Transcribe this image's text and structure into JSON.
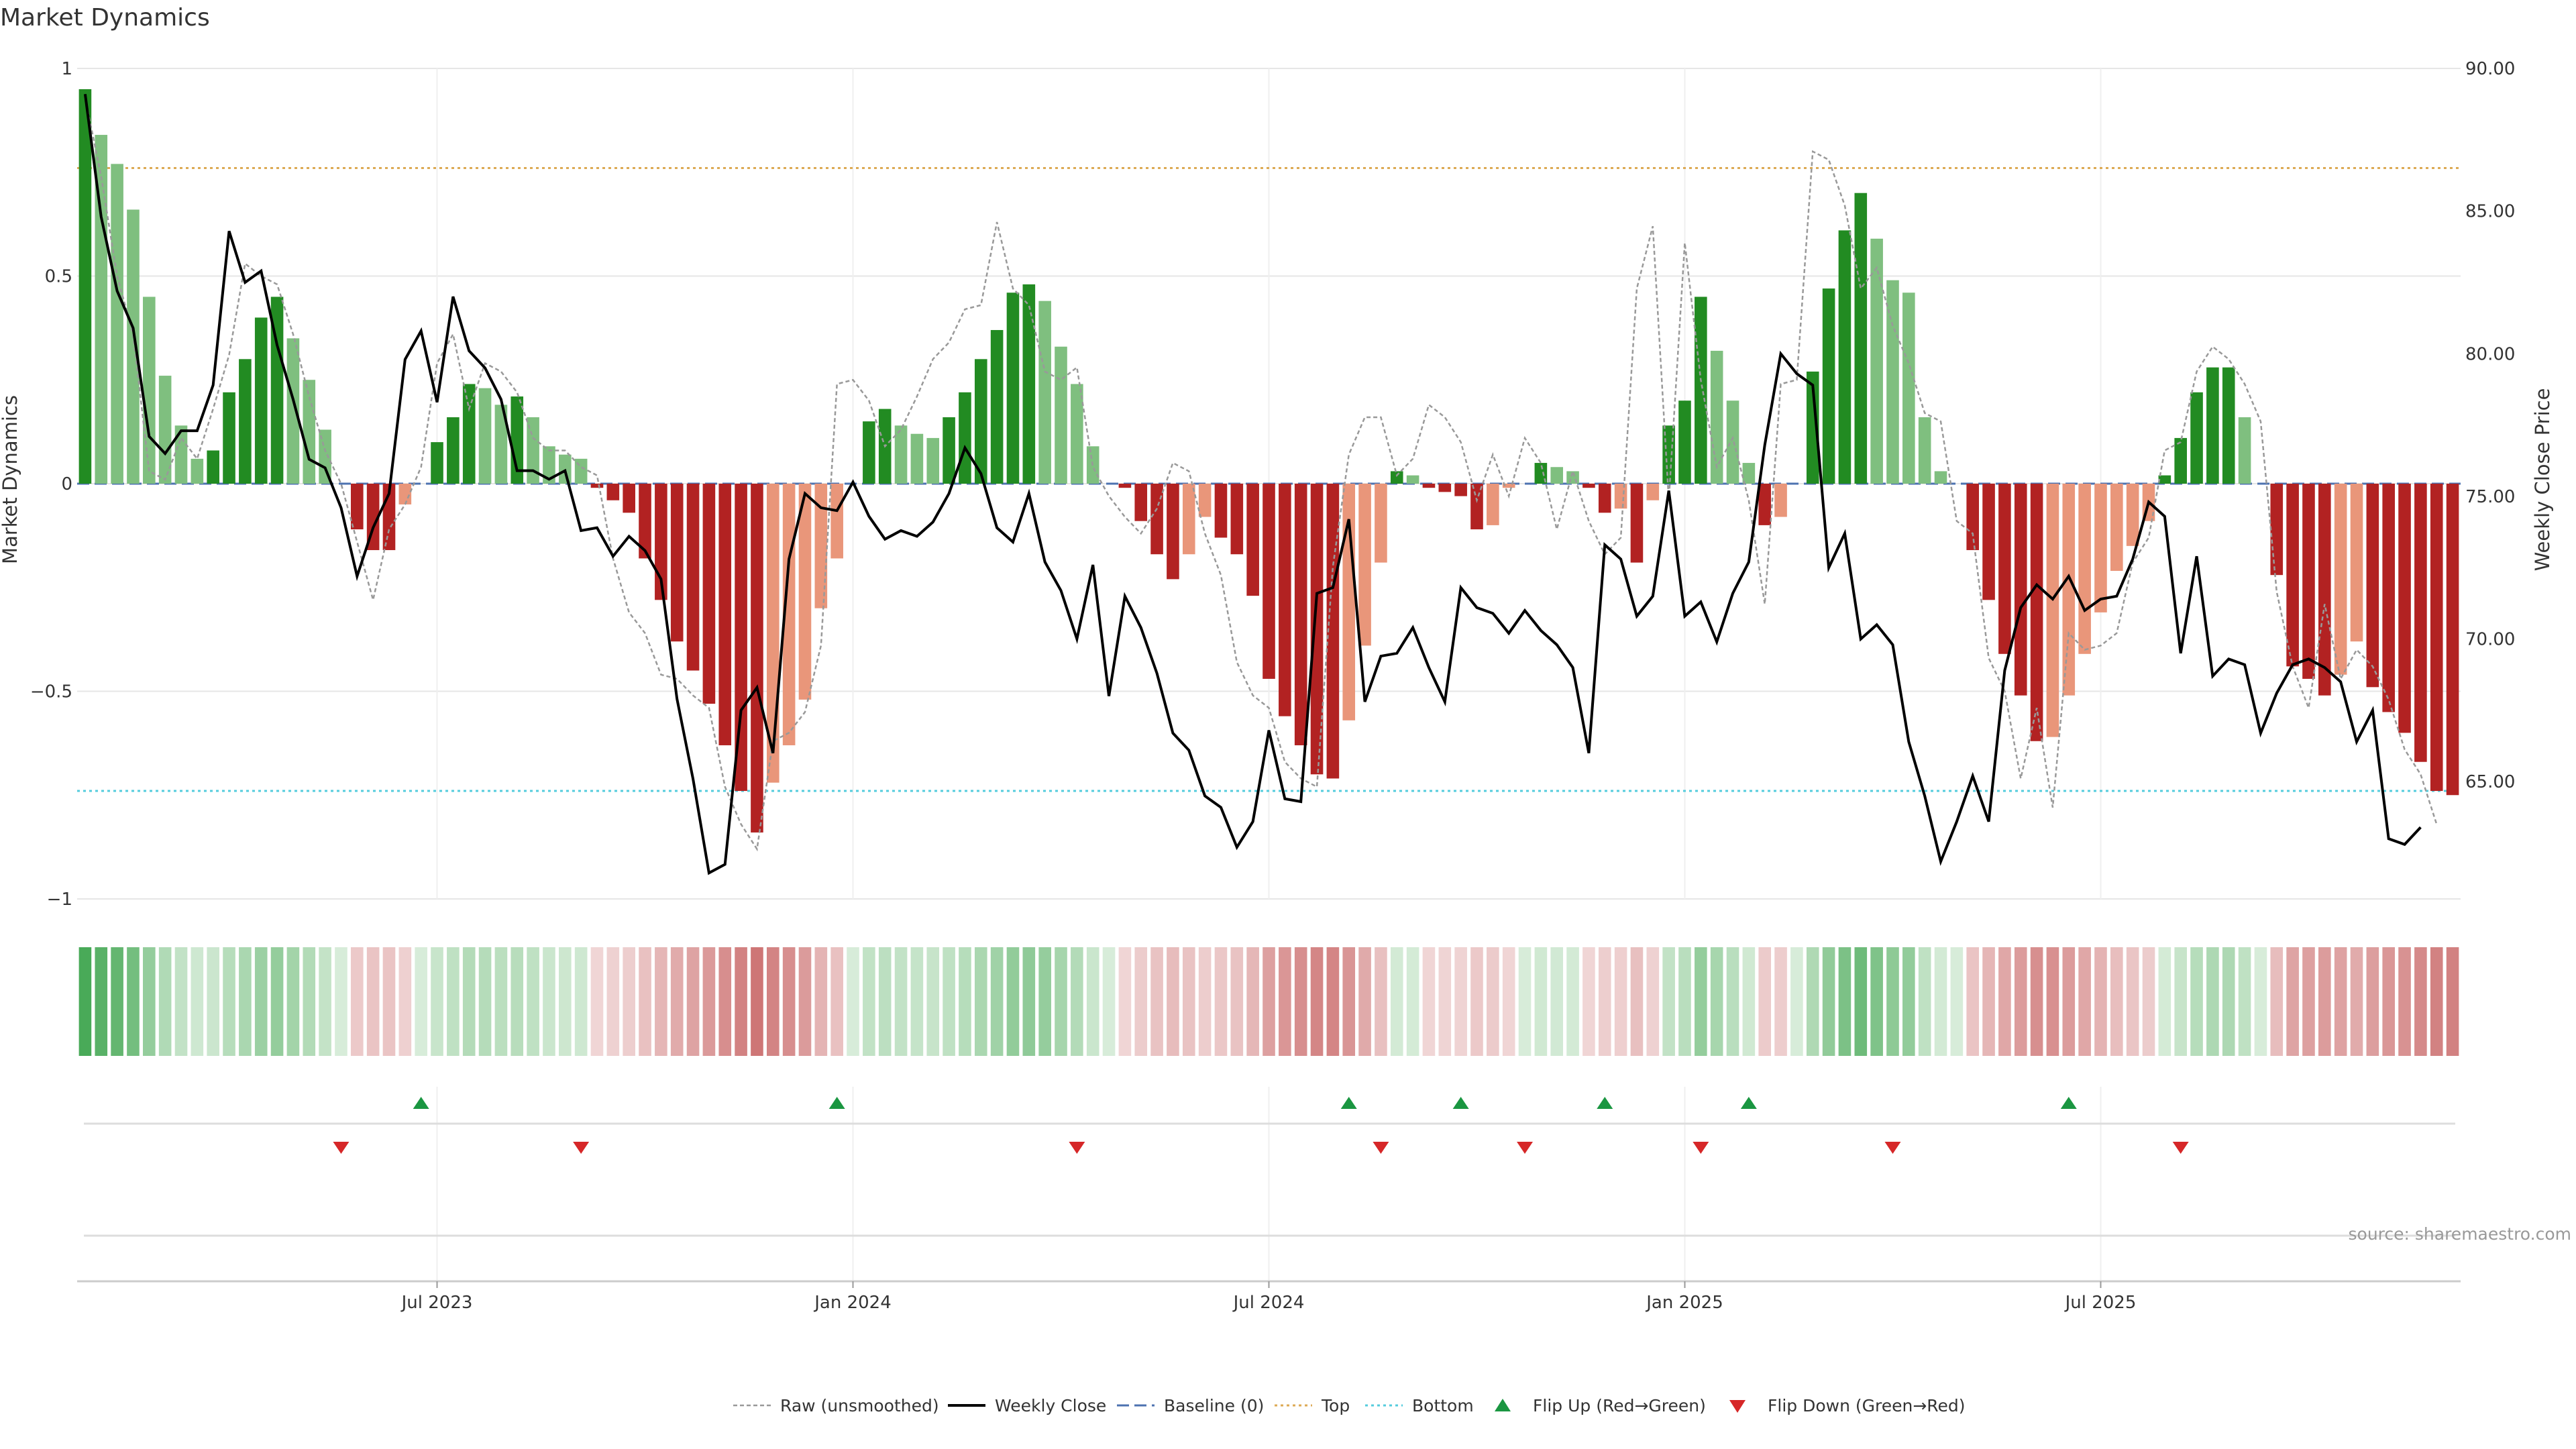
{
  "chart_data": {
    "type": "bar",
    "title": "Market Dynamics",
    "ylabel_left": "Market Dynamics",
    "ylabel_right": "Weekly Close Price",
    "ylim_left": [
      -1,
      1
    ],
    "ylim_right": [
      60.89,
      90.0
    ],
    "left_ticks": [
      "1",
      "0.5",
      "0",
      "−0.5",
      "−1"
    ],
    "left_tick_values": [
      1,
      0.5,
      0,
      -0.5,
      -1
    ],
    "right_ticks": [
      "90.00",
      "85.00",
      "80.00",
      "75.00",
      "70.00",
      "65.00"
    ],
    "right_tick_values": [
      90,
      85,
      80,
      75,
      70,
      65
    ],
    "x_ticks": [
      "Jul 2023",
      "Jan 2024",
      "Jul 2024",
      "Jan 2025",
      "Jul 2025"
    ],
    "x_tick_week_index": [
      22.5,
      48.5,
      74.5,
      100.5,
      126.5
    ],
    "top_level": 0.76,
    "bottom_level": -0.74,
    "baseline": 0,
    "bars": [
      0.95,
      0.84,
      0.77,
      0.66,
      0.45,
      0.26,
      0.14,
      0.06,
      0.08,
      0.22,
      0.3,
      0.4,
      0.45,
      0.35,
      0.25,
      0.13,
      0.0,
      -0.11,
      -0.16,
      -0.16,
      -0.05,
      0.0,
      0.1,
      0.16,
      0.24,
      0.23,
      0.19,
      0.21,
      0.16,
      0.09,
      0.07,
      0.06,
      -0.01,
      -0.04,
      -0.07,
      -0.18,
      -0.28,
      -0.38,
      -0.45,
      -0.53,
      -0.63,
      -0.74,
      -0.84,
      -0.72,
      -0.63,
      -0.52,
      -0.3,
      -0.18,
      0.0,
      0.15,
      0.18,
      0.14,
      0.12,
      0.11,
      0.16,
      0.22,
      0.3,
      0.37,
      0.46,
      0.48,
      0.44,
      0.33,
      0.24,
      0.09,
      0.0,
      -0.01,
      -0.09,
      -0.17,
      -0.23,
      -0.17,
      -0.08,
      -0.13,
      -0.17,
      -0.27,
      -0.47,
      -0.56,
      -0.63,
      -0.7,
      -0.71,
      -0.57,
      -0.39,
      -0.19,
      0.03,
      0.02,
      -0.01,
      -0.02,
      -0.03,
      -0.11,
      -0.1,
      -0.01,
      0.0,
      0.05,
      0.04,
      0.03,
      -0.01,
      -0.07,
      -0.06,
      -0.19,
      -0.04,
      0.14,
      0.2,
      0.45,
      0.32,
      0.2,
      0.05,
      -0.1,
      -0.08,
      0.0,
      0.27,
      0.47,
      0.61,
      0.7,
      0.59,
      0.49,
      0.46,
      0.16,
      0.03,
      0.0,
      -0.16,
      -0.28,
      -0.41,
      -0.51,
      -0.62,
      -0.61,
      -0.51,
      -0.41,
      -0.31,
      -0.21,
      -0.15,
      -0.09,
      0.02,
      0.11,
      0.22,
      0.28,
      0.28,
      0.16,
      0.0,
      -0.22,
      -0.44,
      -0.47,
      -0.51,
      -0.46,
      -0.38,
      -0.49,
      -0.55,
      -0.6,
      -0.67,
      -0.74,
      -0.75
    ],
    "series": [
      {
        "name": "Raw (unsmoothed)",
        "values": [
          0.93,
          0.74,
          0.5,
          0.36,
          0.03,
          0.01,
          0.11,
          0.06,
          0.18,
          0.31,
          0.53,
          0.5,
          0.48,
          0.36,
          0.21,
          0.08,
          0.0,
          -0.14,
          -0.28,
          -0.11,
          -0.05,
          0.04,
          0.29,
          0.36,
          0.18,
          0.29,
          0.27,
          0.22,
          0.11,
          0.08,
          0.08,
          0.04,
          0.02,
          -0.18,
          -0.31,
          -0.36,
          -0.46,
          -0.47,
          -0.51,
          -0.54,
          -0.73,
          -0.82,
          -0.88,
          -0.62,
          -0.6,
          -0.55,
          -0.39,
          0.24,
          0.25,
          0.2,
          0.09,
          0.13,
          0.21,
          0.3,
          0.34,
          0.42,
          0.43,
          0.63,
          0.47,
          0.43,
          0.27,
          0.25,
          0.28,
          0.04,
          -0.03,
          -0.08,
          -0.12,
          -0.06,
          0.05,
          0.03,
          -0.12,
          -0.22,
          -0.43,
          -0.51,
          -0.54,
          -0.67,
          -0.71,
          -0.73,
          -0.2,
          0.07,
          0.16,
          0.16,
          0.02,
          0.06,
          0.19,
          0.16,
          0.1,
          -0.04,
          0.07,
          -0.03,
          0.11,
          0.05,
          -0.11,
          0.03,
          -0.09,
          -0.17,
          -0.13,
          0.47,
          0.62,
          -0.04,
          0.58,
          0.25,
          0.04,
          0.11,
          -0.04,
          -0.29,
          0.24,
          0.25,
          0.8,
          0.78,
          0.67,
          0.47,
          0.52,
          0.38,
          0.29,
          0.17,
          0.15,
          -0.09,
          -0.12,
          -0.42,
          -0.5,
          -0.71,
          -0.54,
          -0.78,
          -0.36,
          -0.4,
          -0.39,
          -0.36,
          -0.19,
          -0.13,
          0.08,
          0.1,
          0.27,
          0.33,
          0.3,
          0.24,
          0.15,
          -0.26,
          -0.44,
          -0.54,
          -0.29,
          -0.47,
          -0.4,
          -0.44,
          -0.52,
          -0.64,
          -0.7,
          -0.82
        ]
      },
      {
        "name": "Weekly Close",
        "values": [
          89.1,
          84.8,
          82.2,
          80.9,
          77.1,
          76.5,
          77.3,
          77.3,
          78.9,
          84.3,
          82.5,
          82.9,
          80.3,
          78.4,
          76.3,
          76.0,
          74.6,
          72.2,
          73.9,
          75.1,
          79.8,
          80.8,
          78.3,
          82.0,
          80.1,
          79.5,
          78.4,
          75.9,
          75.9,
          75.6,
          75.9,
          73.8,
          73.9,
          72.9,
          73.6,
          73.1,
          72.1,
          67.9,
          65.1,
          61.8,
          62.1,
          67.5,
          68.3,
          66.0,
          72.8,
          75.1,
          74.6,
          74.5,
          75.5,
          74.3,
          73.5,
          73.8,
          73.6,
          74.1,
          75.1,
          76.7,
          75.8,
          73.9,
          73.4,
          75.1,
          72.7,
          71.7,
          70.0,
          72.6,
          68.0,
          71.5,
          70.4,
          68.8,
          66.7,
          66.1,
          64.5,
          64.1,
          62.7,
          63.6,
          66.8,
          64.4,
          64.3,
          71.6,
          71.8,
          74.2,
          67.8,
          69.4,
          69.5,
          70.4,
          69.0,
          67.8,
          71.8,
          71.1,
          70.9,
          70.2,
          71.0,
          70.3,
          69.8,
          69.0,
          66.0,
          73.3,
          72.8,
          70.8,
          71.5,
          75.2,
          70.8,
          71.3,
          69.9,
          71.6,
          72.7,
          76.8,
          80.0,
          79.3,
          78.9,
          72.5,
          73.7,
          70.0,
          70.5,
          69.8,
          66.4,
          64.5,
          62.2,
          63.6,
          65.2,
          63.6,
          68.9,
          71.1,
          71.9,
          71.4,
          72.2,
          71.0,
          71.4,
          71.5,
          72.8,
          74.8,
          74.3,
          69.5,
          72.9,
          68.7,
          69.3,
          69.1,
          66.7,
          68.1,
          69.1,
          69.3,
          69.0,
          68.5,
          66.4,
          67.5,
          63.0,
          62.8,
          63.4
        ]
      },
      {
        "name": "Baseline (0)"
      },
      {
        "name": "Top"
      },
      {
        "name": "Bottom"
      }
    ],
    "flip_up_week_index": [
      21,
      47,
      79,
      86,
      95,
      104,
      124
    ],
    "flip_down_week_index": [
      16,
      31,
      62,
      81,
      90,
      101,
      113,
      131
    ],
    "legend": [
      "Raw (unsmoothed)",
      "Weekly Close",
      "Baseline (0)",
      "Top",
      "Bottom",
      "Flip Up (Red→Green)",
      "Flip Down (Green→Red)"
    ],
    "legend_position": "bottom-center",
    "source": "source: sharemaestro.com",
    "grid": true
  },
  "colors": {
    "green_strong": "#228b22",
    "green_light": "#7fbf7f",
    "red_strong": "#b22222",
    "red_light": "#e9967a",
    "raw_line": "#999999",
    "close_line": "#000000",
    "baseline": "#4c72b0",
    "top_line": "#ddaa55",
    "bottom_line": "#55ccdd",
    "flip_up": "#1a9641",
    "flip_down": "#d62728"
  }
}
